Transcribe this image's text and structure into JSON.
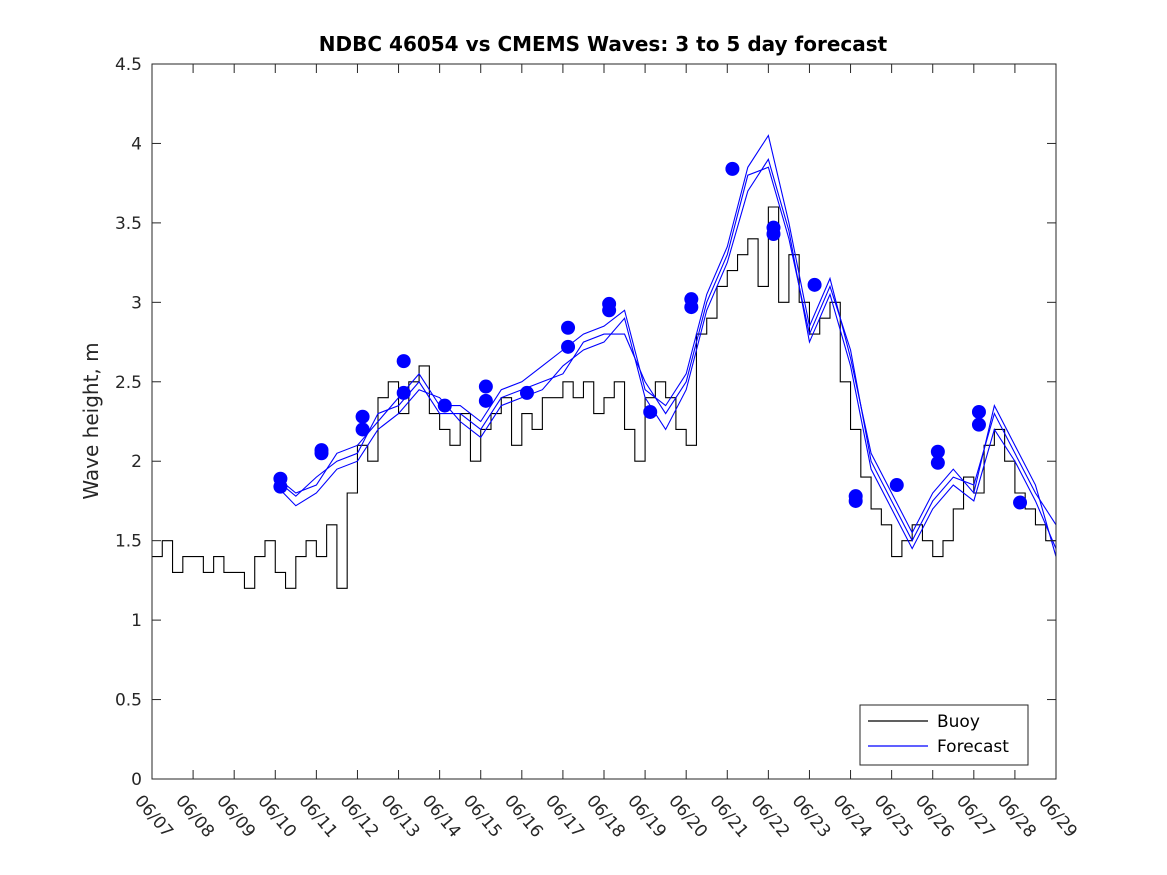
{
  "chart_data": {
    "type": "line",
    "title": "NDBC 46054 vs CMEMS Waves: 3 to 5 day forecast",
    "xlabel": "",
    "ylabel": "Wave height, m",
    "ylim": [
      0,
      4.5
    ],
    "xlim": [
      "06/07",
      "06/29"
    ],
    "grid": false,
    "legend_position": "bottom-right",
    "x_ticks": [
      "06/07",
      "06/08",
      "06/09",
      "06/10",
      "06/11",
      "06/12",
      "06/13",
      "06/14",
      "06/15",
      "06/16",
      "06/17",
      "06/18",
      "06/19",
      "06/20",
      "06/21",
      "06/22",
      "06/23",
      "06/24",
      "06/25",
      "06/26",
      "06/27",
      "06/28",
      "06/29"
    ],
    "y_ticks": [
      "0",
      "0.5",
      "1",
      "1.5",
      "2",
      "2.5",
      "3",
      "3.5",
      "4",
      "4.5"
    ],
    "colors": {
      "buoy": "#000000",
      "forecast": "#0000ff",
      "axis": "#262626"
    },
    "series": [
      {
        "name": "Buoy",
        "kind": "line",
        "x": [
          "06/07 00:00",
          "06/07 06:00",
          "06/07 12:00",
          "06/07 18:00",
          "06/08 00:00",
          "06/08 06:00",
          "06/08 12:00",
          "06/08 18:00",
          "06/09 00:00",
          "06/09 06:00",
          "06/09 12:00",
          "06/09 18:00",
          "06/10 00:00",
          "06/10 06:00",
          "06/10 12:00",
          "06/10 18:00",
          "06/11 00:00",
          "06/11 06:00",
          "06/11 12:00",
          "06/11 18:00",
          "06/12 00:00",
          "06/12 06:00",
          "06/12 12:00",
          "06/12 18:00",
          "06/13 00:00",
          "06/13 06:00",
          "06/13 12:00",
          "06/13 18:00",
          "06/14 00:00",
          "06/14 06:00",
          "06/14 12:00",
          "06/14 18:00",
          "06/15 00:00",
          "06/15 06:00",
          "06/15 12:00",
          "06/15 18:00",
          "06/16 00:00",
          "06/16 06:00",
          "06/16 12:00",
          "06/16 18:00",
          "06/17 00:00",
          "06/17 06:00",
          "06/17 12:00",
          "06/17 18:00",
          "06/18 00:00",
          "06/18 06:00",
          "06/18 12:00",
          "06/18 18:00",
          "06/19 00:00",
          "06/19 06:00",
          "06/19 12:00",
          "06/19 18:00",
          "06/20 00:00",
          "06/20 06:00",
          "06/20 12:00",
          "06/20 18:00",
          "06/21 00:00",
          "06/21 06:00",
          "06/21 12:00",
          "06/21 18:00",
          "06/22 00:00",
          "06/22 06:00",
          "06/22 12:00",
          "06/22 18:00",
          "06/23 00:00",
          "06/23 06:00",
          "06/23 12:00",
          "06/23 18:00",
          "06/24 00:00",
          "06/24 06:00",
          "06/24 12:00",
          "06/24 18:00",
          "06/25 00:00",
          "06/25 06:00",
          "06/25 12:00",
          "06/25 18:00",
          "06/26 00:00",
          "06/26 06:00",
          "06/26 12:00",
          "06/26 18:00",
          "06/27 00:00",
          "06/27 06:00",
          "06/27 12:00",
          "06/27 18:00",
          "06/28 00:00",
          "06/28 06:00",
          "06/28 12:00",
          "06/28 18:00",
          "06/29 00:00"
        ],
        "y": [
          1.4,
          1.5,
          1.3,
          1.4,
          1.4,
          1.3,
          1.4,
          1.3,
          1.3,
          1.2,
          1.4,
          1.5,
          1.3,
          1.2,
          1.4,
          1.5,
          1.4,
          1.6,
          1.2,
          1.8,
          2.1,
          2.0,
          2.4,
          2.5,
          2.3,
          2.5,
          2.6,
          2.3,
          2.2,
          2.1,
          2.3,
          2.0,
          2.2,
          2.3,
          2.4,
          2.1,
          2.3,
          2.2,
          2.4,
          2.4,
          2.5,
          2.4,
          2.5,
          2.3,
          2.4,
          2.5,
          2.2,
          2.0,
          2.4,
          2.5,
          2.4,
          2.2,
          2.1,
          2.8,
          2.9,
          3.1,
          3.2,
          3.3,
          3.4,
          3.1,
          3.6,
          3.0,
          3.3,
          3.0,
          2.8,
          2.9,
          3.0,
          2.5,
          2.2,
          1.9,
          1.7,
          1.6,
          1.4,
          1.5,
          1.6,
          1.5,
          1.4,
          1.5,
          1.7,
          1.9,
          1.8,
          2.1,
          2.2,
          2.0,
          1.8,
          1.7,
          1.6,
          1.5,
          1.5
        ]
      },
      {
        "name": "Forecast",
        "kind": "line",
        "x": [
          "06/10 03:00",
          "06/10 12:00",
          "06/11 00:00",
          "06/11 12:00",
          "06/12 00:00",
          "06/12 12:00",
          "06/13 00:00",
          "06/13 12:00",
          "06/14 00:00",
          "06/14 12:00",
          "06/15 00:00",
          "06/15 12:00",
          "06/16 00:00",
          "06/16 12:00",
          "06/17 00:00",
          "06/17 12:00",
          "06/18 00:00",
          "06/18 12:00",
          "06/19 00:00",
          "06/19 12:00",
          "06/20 00:00",
          "06/20 12:00",
          "06/21 00:00",
          "06/21 12:00",
          "06/22 00:00",
          "06/22 12:00",
          "06/23 00:00",
          "06/23 12:00",
          "06/24 00:00",
          "06/24 12:00",
          "06/25 00:00",
          "06/25 12:00",
          "06/26 00:00",
          "06/26 12:00",
          "06/27 00:00",
          "06/27 12:00",
          "06/28 00:00",
          "06/28 12:00",
          "06/29 00:00"
        ],
        "y": [
          1.86,
          1.78,
          1.9,
          2.0,
          2.05,
          2.3,
          2.35,
          2.5,
          2.3,
          2.3,
          2.2,
          2.4,
          2.45,
          2.5,
          2.55,
          2.75,
          2.8,
          2.8,
          2.5,
          2.3,
          2.5,
          3.0,
          3.3,
          3.8,
          3.85,
          3.4,
          2.8,
          3.1,
          2.7,
          2.0,
          1.75,
          1.5,
          1.75,
          1.9,
          1.85,
          2.3,
          2.05,
          1.8,
          1.6
        ]
      },
      {
        "name": "Forecast",
        "kind": "line",
        "x": [
          "06/10 03:00",
          "06/10 12:00",
          "06/11 00:00",
          "06/11 12:00",
          "06/12 00:00",
          "06/12 12:00",
          "06/13 00:00",
          "06/13 12:00",
          "06/14 00:00",
          "06/14 12:00",
          "06/15 00:00",
          "06/15 12:00",
          "06/16 00:00",
          "06/16 12:00",
          "06/17 00:00",
          "06/17 12:00",
          "06/18 00:00",
          "06/18 12:00",
          "06/19 00:00",
          "06/19 12:00",
          "06/20 00:00",
          "06/20 12:00",
          "06/21 00:00",
          "06/21 12:00",
          "06/22 00:00",
          "06/22 12:00",
          "06/23 00:00",
          "06/23 12:00",
          "06/24 00:00",
          "06/24 12:00",
          "06/25 00:00",
          "06/25 12:00",
          "06/26 00:00",
          "06/26 12:00",
          "06/27 00:00",
          "06/27 12:00",
          "06/28 00:00",
          "06/28 12:00",
          "06/29 00:00"
        ],
        "y": [
          1.82,
          1.72,
          1.8,
          1.95,
          2.0,
          2.2,
          2.3,
          2.45,
          2.4,
          2.25,
          2.15,
          2.35,
          2.4,
          2.45,
          2.6,
          2.7,
          2.75,
          2.9,
          2.4,
          2.2,
          2.45,
          2.95,
          3.25,
          3.7,
          3.9,
          3.45,
          2.75,
          3.05,
          2.6,
          1.95,
          1.7,
          1.45,
          1.7,
          1.85,
          1.75,
          2.2,
          2.0,
          1.75,
          1.45
        ]
      },
      {
        "name": "Forecast",
        "kind": "line",
        "x": [
          "06/10 03:00",
          "06/10 12:00",
          "06/11 00:00",
          "06/11 12:00",
          "06/12 00:00",
          "06/12 12:00",
          "06/13 00:00",
          "06/13 12:00",
          "06/14 00:00",
          "06/14 12:00",
          "06/15 00:00",
          "06/15 12:00",
          "06/16 00:00",
          "06/16 12:00",
          "06/17 00:00",
          "06/17 12:00",
          "06/18 00:00",
          "06/18 12:00",
          "06/19 00:00",
          "06/19 12:00",
          "06/20 00:00",
          "06/20 12:00",
          "06/21 00:00",
          "06/21 12:00",
          "06/22 00:00",
          "06/22 12:00",
          "06/23 00:00",
          "06/23 12:00",
          "06/24 00:00",
          "06/24 12:00",
          "06/25 00:00",
          "06/25 12:00",
          "06/26 00:00",
          "06/26 12:00",
          "06/27 00:00",
          "06/27 12:00",
          "06/28 00:00",
          "06/28 12:00",
          "06/29 00:00"
        ],
        "y": [
          1.88,
          1.8,
          1.85,
          2.05,
          2.1,
          2.25,
          2.4,
          2.55,
          2.35,
          2.35,
          2.25,
          2.45,
          2.5,
          2.6,
          2.7,
          2.8,
          2.85,
          2.95,
          2.45,
          2.35,
          2.55,
          3.05,
          3.35,
          3.85,
          4.05,
          3.5,
          2.85,
          3.15,
          2.65,
          2.05,
          1.8,
          1.55,
          1.8,
          1.95,
          1.8,
          2.35,
          2.1,
          1.85,
          1.4
        ]
      },
      {
        "name": "Forecast",
        "kind": "scatter",
        "x": [
          "06/10 03:00",
          "06/10 03:00",
          "06/11 03:00",
          "06/11 03:00",
          "06/12 03:00",
          "06/12 03:00",
          "06/13 03:00",
          "06/13 03:00",
          "06/14 03:00",
          "06/15 03:00",
          "06/15 03:00",
          "06/16 03:00",
          "06/17 03:00",
          "06/17 03:00",
          "06/18 03:00",
          "06/18 03:00",
          "06/19 03:00",
          "06/20 03:00",
          "06/20 03:00",
          "06/21 03:00",
          "06/22 03:00",
          "06/22 03:00",
          "06/23 03:00",
          "06/24 03:00",
          "06/24 03:00",
          "06/25 03:00",
          "06/26 03:00",
          "06/26 03:00",
          "06/27 03:00",
          "06/27 03:00",
          "06/28 03:00"
        ],
        "y": [
          1.89,
          1.84,
          2.07,
          2.05,
          2.28,
          2.2,
          2.63,
          2.43,
          2.35,
          2.47,
          2.38,
          2.43,
          2.84,
          2.72,
          2.99,
          2.95,
          2.31,
          3.02,
          2.97,
          3.84,
          3.47,
          3.43,
          3.11,
          1.78,
          1.75,
          1.85,
          2.06,
          1.99,
          2.31,
          2.23,
          1.74
        ]
      }
    ]
  }
}
